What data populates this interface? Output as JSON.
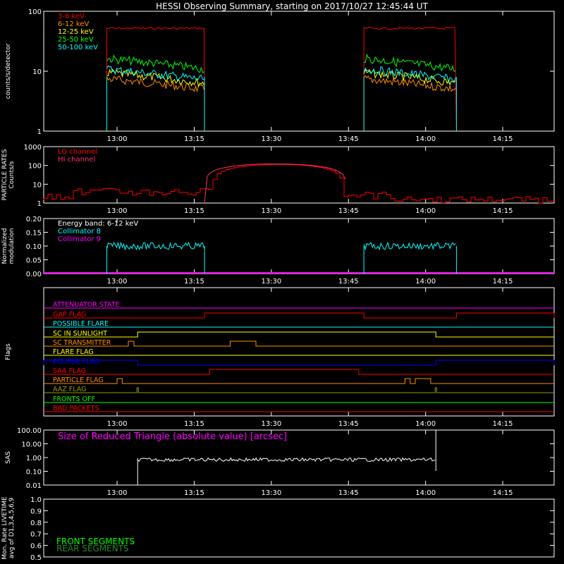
{
  "title": "HESSI Observing Summary, starting on 2017/10/27 12:45:44 UT",
  "time_ticks": [
    "13:00",
    "13:15",
    "13:30",
    "13:45",
    "14:00",
    "14:15"
  ],
  "chart_data": [
    {
      "type": "line",
      "name": "count-rates",
      "ylabel": "counts/s/detector",
      "yscale": "log",
      "ylim": [
        1,
        100
      ],
      "yticks": [
        "1",
        "10",
        "100"
      ],
      "series": [
        {
          "name": "3-6 keV",
          "color": "#ff0000",
          "level": 52
        },
        {
          "name": "6-12 keV",
          "color": "#ff8c00",
          "level": 5.5
        },
        {
          "name": "12-25 keV",
          "color": "#ffff00",
          "level": 7.0
        },
        {
          "name": "25-50 keV",
          "color": "#00ff00",
          "level": 12.0
        },
        {
          "name": "50-100 keV",
          "color": "#00ffff",
          "level": 8.0
        }
      ],
      "intervals": [
        [
          "12:58",
          "13:17"
        ],
        "13:48",
        "14:06"
      ]
    },
    {
      "type": "line",
      "name": "particle-rates",
      "ylabel": "PARTICLE RATES\nCounts/s",
      "yscale": "log",
      "ylim": [
        1,
        1000
      ],
      "yticks": [
        "1",
        "10",
        "100",
        "1000"
      ],
      "series": [
        {
          "name": "LO channel",
          "color": "#ff0000"
        },
        {
          "name": "HI channel",
          "color": "#ff3070",
          "peak": 120,
          "peak_time": "13:32"
        }
      ]
    },
    {
      "type": "line",
      "name": "modulation",
      "ylabel": "Normalized\nmodulation",
      "ylim": [
        0,
        0.2
      ],
      "yticks": [
        "0.00",
        "0.05",
        "0.10",
        "0.15",
        "0.20"
      ],
      "series": [
        {
          "name": "Energy band: 6-12 keV",
          "color": "#ffffff"
        },
        {
          "name": "Collimator 8",
          "color": "#00ffff",
          "level": 0.1
        },
        {
          "name": "Collimator 9",
          "color": "#ff00ff",
          "level": 0.0
        }
      ]
    },
    {
      "type": "line",
      "name": "flags",
      "ylabel": "Flags",
      "series": [
        {
          "name": "ATTENUATOR STATE",
          "color": "#ff00ff"
        },
        {
          "name": "GAP FLAG",
          "color": "#ff0000"
        },
        {
          "name": "POSSIBLE FLARE",
          "color": "#00ffff"
        },
        {
          "name": "SC IN SUNLIGHT",
          "color": "#ffff00"
        },
        {
          "name": "SC TRANSMITTER",
          "color": "#ff8c00"
        },
        {
          "name": "FLARE FLAG",
          "color": "#ffff00"
        },
        {
          "name": "ECLIPSE FLAG",
          "color": "#0000ff"
        },
        {
          "name": "SAA FLAG",
          "color": "#ff0000"
        },
        {
          "name": "PARTICLE FLAG",
          "color": "#ff8c00"
        },
        {
          "name": "AAZ FLAG",
          "color": "#999900"
        },
        {
          "name": "FRONTS OFF",
          "color": "#00ff00"
        },
        {
          "name": "BAD PACKETS",
          "color": "#ff0000"
        }
      ]
    },
    {
      "type": "line",
      "name": "sas",
      "ylabel": "SAS",
      "yscale": "log",
      "ylim": [
        0.01,
        100
      ],
      "yticks": [
        "0.01",
        "0.10",
        "1.00",
        "10.00",
        "100.00"
      ],
      "series": [
        {
          "name": "Size of Reduced Triangle (absolute value) [arcsec]",
          "color": "#ffffff",
          "level": 0.7
        }
      ]
    },
    {
      "type": "line",
      "name": "livetime",
      "ylabel": "Mon. Rate LIVETIME\navg of D1,3,4,5,6,9",
      "ylim": [
        0.5,
        1.0
      ],
      "yticks": [
        "0.5",
        "0.6",
        "0.7",
        "0.8",
        "0.9",
        "1.0"
      ],
      "series": [
        {
          "name": "FRONT SEGMENTS",
          "color": "#00ff00"
        },
        {
          "name": "REAR SEGMENTS",
          "color": "#228b22"
        }
      ]
    }
  ]
}
